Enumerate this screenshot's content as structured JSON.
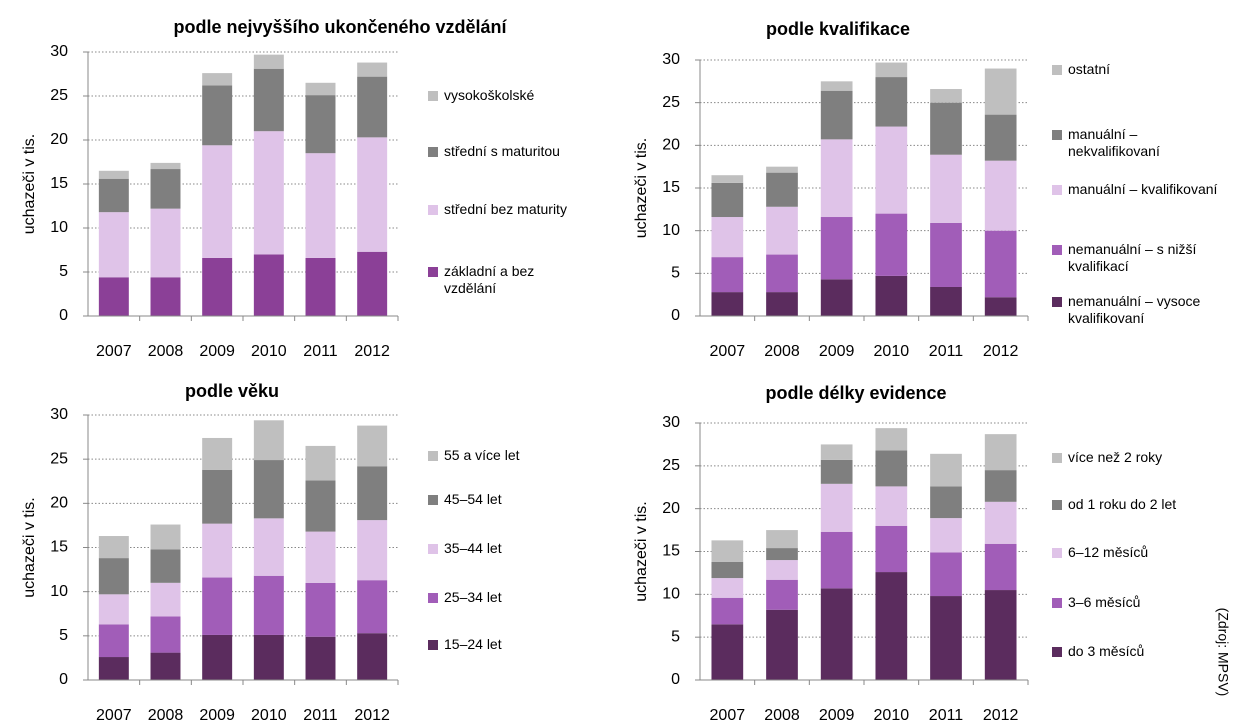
{
  "source": "(Zdroj: MPSV)",
  "chart_data": [
    {
      "type": "stacked_bar",
      "title": "podle nejvyššího ukončeného vzdělání",
      "y_label": "uchazeči v tis.",
      "categories": [
        "2007",
        "2008",
        "2009",
        "2010",
        "2011",
        "2012"
      ],
      "ylim": [
        0,
        30
      ],
      "yticks": [
        0,
        5,
        10,
        15,
        20,
        25,
        30
      ],
      "grid": true,
      "legend": "right",
      "series": [
        {
          "name": "základní a bez vzdělání",
          "color": "#8b4097",
          "values": [
            4.4,
            4.4,
            6.6,
            7.0,
            6.6,
            7.3
          ]
        },
        {
          "name": "střední bez maturity",
          "color": "#dfc3e8",
          "values": [
            7.4,
            7.8,
            12.8,
            14.0,
            11.9,
            13.0
          ]
        },
        {
          "name": "střední s maturitou",
          "color": "#7f7f7f",
          "values": [
            3.8,
            4.5,
            6.8,
            7.1,
            6.6,
            6.9
          ]
        },
        {
          "name": "vysokoškolské",
          "color": "#bfbfbf",
          "values": [
            0.9,
            0.7,
            1.4,
            1.6,
            1.4,
            1.6
          ]
        }
      ]
    },
    {
      "type": "stacked_bar",
      "title": "podle kvalifikace",
      "y_label": "uchazeči v tis.",
      "categories": [
        "2007",
        "2008",
        "2009",
        "2010",
        "2011",
        "2012"
      ],
      "ylim": [
        0,
        30
      ],
      "yticks": [
        0,
        5,
        10,
        15,
        20,
        25,
        30
      ],
      "grid": true,
      "legend": "right",
      "series": [
        {
          "name": "nemanuální – vysoce kvalifikovaní",
          "color": "#5b2c5e",
          "values": [
            2.8,
            2.8,
            4.3,
            4.7,
            3.4,
            2.2
          ]
        },
        {
          "name": "nemanuální – s nižší kvalifikací",
          "color": "#a15db8",
          "values": [
            4.1,
            4.4,
            7.3,
            7.3,
            7.5,
            7.8
          ]
        },
        {
          "name": "manuální – kvalifikovaní",
          "color": "#dfc3e8",
          "values": [
            4.7,
            5.6,
            9.1,
            10.2,
            8.0,
            8.2
          ]
        },
        {
          "name": "manuální – nekvalifikovaní",
          "color": "#7f7f7f",
          "values": [
            4.0,
            4.0,
            5.7,
            5.8,
            6.1,
            5.4
          ]
        },
        {
          "name": "ostatní",
          "color": "#bfbfbf",
          "values": [
            0.9,
            0.7,
            1.1,
            1.7,
            1.6,
            5.4
          ]
        }
      ]
    },
    {
      "type": "stacked_bar",
      "title": "podle věku",
      "y_label": "uchazeči v tis.",
      "categories": [
        "2007",
        "2008",
        "2009",
        "2010",
        "2011",
        "2012"
      ],
      "ylim": [
        0,
        30
      ],
      "yticks": [
        0,
        5,
        10,
        15,
        20,
        25,
        30
      ],
      "grid": true,
      "legend": "right",
      "series": [
        {
          "name": "15–24 let",
          "color": "#5b2c5e",
          "values": [
            2.6,
            3.1,
            5.1,
            5.1,
            4.9,
            5.3
          ]
        },
        {
          "name": "25–34 let",
          "color": "#a15db8",
          "values": [
            3.7,
            4.1,
            6.5,
            6.7,
            6.1,
            6.0
          ]
        },
        {
          "name": "35–44 let",
          "color": "#dfc3e8",
          "values": [
            3.4,
            3.8,
            6.1,
            6.5,
            5.8,
            6.8
          ]
        },
        {
          "name": "45–54 let",
          "color": "#7f7f7f",
          "values": [
            4.1,
            3.8,
            6.1,
            6.6,
            5.8,
            6.1
          ]
        },
        {
          "name": "55 a více let",
          "color": "#bfbfbf",
          "values": [
            2.5,
            2.8,
            3.6,
            4.5,
            3.9,
            4.6
          ]
        }
      ]
    },
    {
      "type": "stacked_bar",
      "title": "podle délky evidence",
      "y_label": "uchazeči v tis.",
      "categories": [
        "2007",
        "2008",
        "2009",
        "2010",
        "2011",
        "2012"
      ],
      "ylim": [
        0,
        30
      ],
      "yticks": [
        0,
        5,
        10,
        15,
        20,
        25,
        30
      ],
      "grid": true,
      "legend": "right",
      "series": [
        {
          "name": "do 3 měsíců",
          "color": "#5b2c5e",
          "values": [
            6.5,
            8.2,
            10.7,
            12.6,
            9.8,
            10.5
          ]
        },
        {
          "name": "3–6 měsíců",
          "color": "#a15db8",
          "values": [
            3.1,
            3.5,
            6.6,
            5.4,
            5.1,
            5.4
          ]
        },
        {
          "name": "6–12 měsíců",
          "color": "#dfc3e8",
          "values": [
            2.3,
            2.3,
            5.6,
            4.6,
            4.0,
            4.9
          ]
        },
        {
          "name": "od 1 roku do 2 let",
          "color": "#7f7f7f",
          "values": [
            1.9,
            1.4,
            2.8,
            4.2,
            3.7,
            3.7
          ]
        },
        {
          "name": "více než 2 roky",
          "color": "#bfbfbf",
          "values": [
            2.5,
            2.1,
            1.8,
            2.6,
            3.8,
            4.2
          ]
        }
      ]
    }
  ]
}
